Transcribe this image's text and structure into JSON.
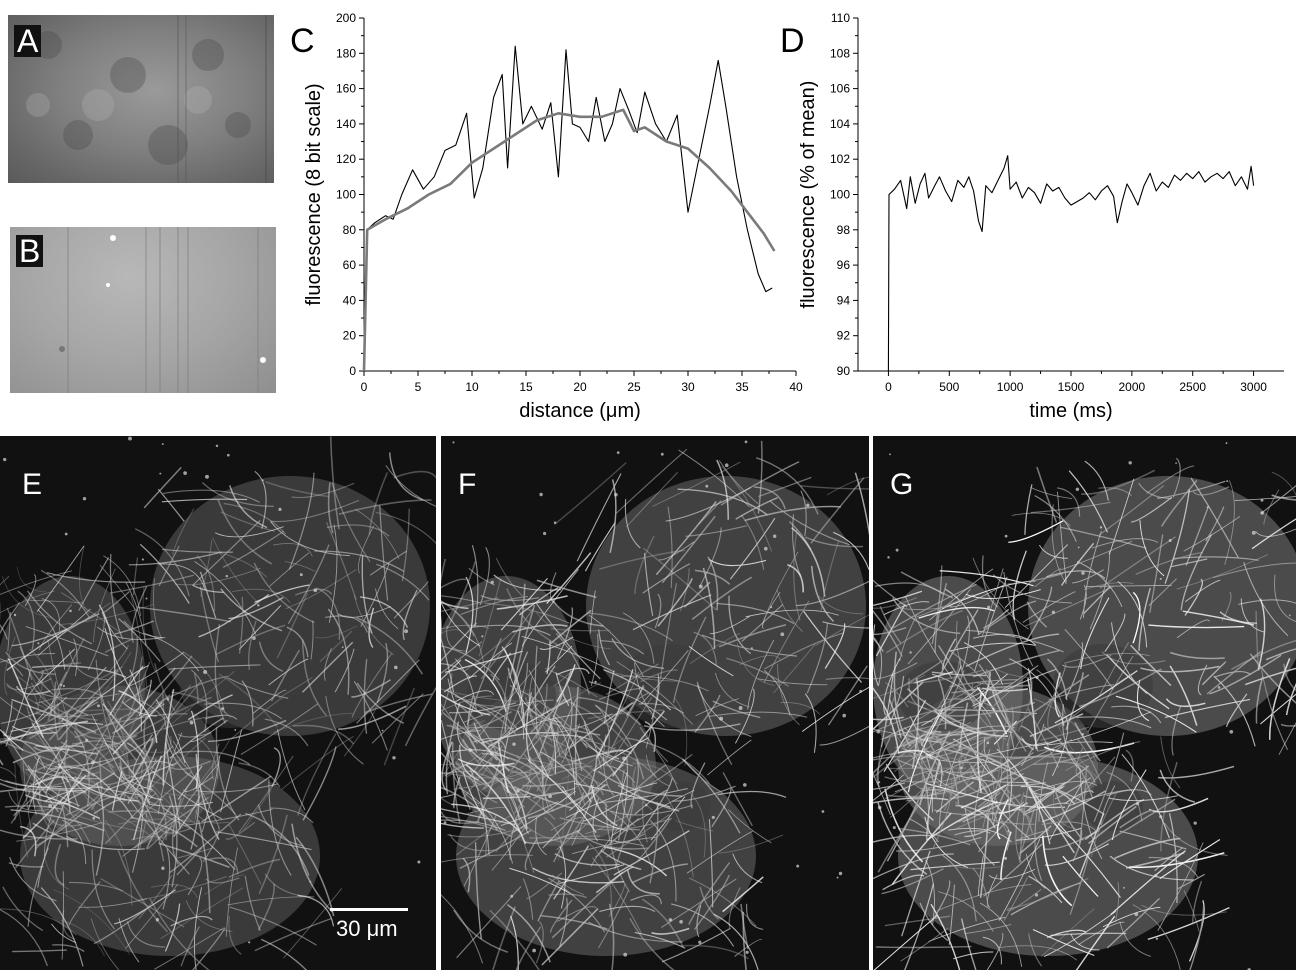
{
  "panels": {
    "A": "A",
    "B": "B",
    "C": "C",
    "D": "D",
    "E": "E",
    "F": "F",
    "G": "G"
  },
  "scale_bar": {
    "label": "30 μm"
  },
  "colors": {
    "trace_dark": "#000000",
    "trace_grey": "#7a7a7a"
  },
  "chart_data": [
    {
      "panel": "C",
      "type": "line",
      "xlabel": "distance (μm)",
      "ylabel": "fluorescence (8 bit scale)",
      "xlim": [
        0,
        40
      ],
      "ylim": [
        0,
        200
      ],
      "xticks": [
        0,
        5,
        10,
        15,
        20,
        25,
        30,
        35,
        40
      ],
      "yticks": [
        0,
        20,
        40,
        60,
        80,
        100,
        120,
        140,
        160,
        180,
        200
      ],
      "series": [
        {
          "color": "#000000",
          "x": [
            0,
            0.3,
            1,
            2,
            2.7,
            3.5,
            4.5,
            5.5,
            6.5,
            7.5,
            8.5,
            9.5,
            10.2,
            11,
            12,
            12.8,
            13.3,
            14,
            14.7,
            15.5,
            16.5,
            17.3,
            18,
            18.7,
            19.3,
            20,
            20.8,
            21.5,
            22.3,
            23,
            23.7,
            24.5,
            25.3,
            26,
            27,
            28,
            29,
            30,
            31,
            32,
            32.8,
            33.5,
            34.5,
            35.5,
            36.5,
            37.2,
            37.8
          ],
          "y": [
            0,
            80,
            84,
            88,
            86,
            100,
            114,
            103,
            110,
            125,
            128,
            146,
            98,
            115,
            155,
            168,
            115,
            184,
            140,
            150,
            137,
            152,
            110,
            182,
            140,
            138,
            130,
            155,
            130,
            140,
            160,
            148,
            135,
            158,
            140,
            130,
            145,
            90,
            120,
            150,
            176,
            150,
            110,
            80,
            55,
            45,
            47
          ]
        },
        {
          "color": "#7a7a7a",
          "x": [
            0,
            0.3,
            2,
            4,
            6,
            8,
            10,
            12,
            14,
            16,
            18,
            20,
            22,
            24,
            25,
            26,
            28,
            30,
            32,
            34,
            35.5,
            37,
            38
          ],
          "y": [
            0,
            80,
            86,
            92,
            100,
            106,
            118,
            126,
            134,
            142,
            146,
            144,
            144,
            148,
            136,
            138,
            130,
            126,
            115,
            102,
            90,
            78,
            68
          ]
        }
      ]
    },
    {
      "panel": "D",
      "type": "line",
      "xlabel": "time (ms)",
      "ylabel": "fluorescence (% of mean)",
      "xlim": [
        -250,
        3250
      ],
      "ylim": [
        90,
        110
      ],
      "xticks": [
        0,
        500,
        1000,
        1500,
        2000,
        2500,
        3000
      ],
      "yticks": [
        90,
        92,
        94,
        96,
        98,
        100,
        102,
        104,
        106,
        108,
        110
      ],
      "series": [
        {
          "color": "#000000",
          "x": [
            0,
            5,
            50,
            100,
            150,
            180,
            220,
            260,
            300,
            330,
            380,
            420,
            470,
            520,
            570,
            620,
            660,
            700,
            740,
            770,
            800,
            850,
            900,
            950,
            980,
            1000,
            1050,
            1100,
            1150,
            1200,
            1250,
            1300,
            1350,
            1400,
            1450,
            1500,
            1550,
            1600,
            1650,
            1700,
            1750,
            1800,
            1850,
            1880,
            1920,
            1960,
            2000,
            2050,
            2100,
            2150,
            2200,
            2250,
            2300,
            2350,
            2400,
            2450,
            2500,
            2550,
            2600,
            2650,
            2700,
            2750,
            2800,
            2850,
            2900,
            2950,
            2980,
            3000
          ],
          "y": [
            90,
            100,
            100.3,
            100.8,
            99.2,
            101,
            99.5,
            100.6,
            101.2,
            99.8,
            100.5,
            101,
            100.2,
            99.6,
            100.8,
            100.4,
            101,
            100.2,
            98.5,
            97.9,
            100.5,
            100.1,
            100.8,
            101.5,
            102.2,
            100.3,
            100.7,
            99.8,
            100.4,
            100.1,
            99.5,
            100.6,
            100.2,
            100.4,
            99.8,
            99.4,
            99.6,
            99.8,
            100.1,
            99.7,
            100.2,
            100.5,
            99.9,
            98.4,
            99.6,
            100.6,
            100.1,
            99.4,
            100.5,
            101.2,
            100.2,
            100.7,
            100.4,
            101.1,
            100.8,
            101.2,
            100.9,
            101.3,
            100.7,
            101,
            101.2,
            100.9,
            101.3,
            100.5,
            101,
            100.3,
            101.6,
            100.5
          ]
        }
      ]
    }
  ]
}
